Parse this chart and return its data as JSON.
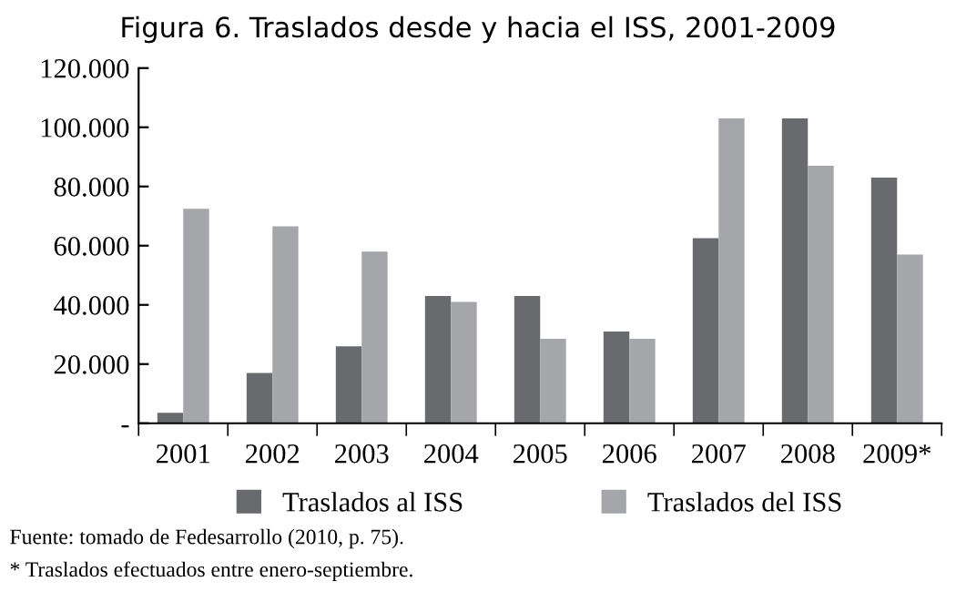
{
  "chart_data": {
    "type": "bar",
    "title": "Figura 6. Traslados desde y hacia el ISS, 2001-2009",
    "categories": [
      "2001",
      "2002",
      "2003",
      "2004",
      "2005",
      "2006",
      "2007",
      "2008",
      "2009*"
    ],
    "series": [
      {
        "name": "Traslados al ISS",
        "color": "#696a6e",
        "values": [
          3500,
          17000,
          26000,
          43000,
          43000,
          31000,
          62500,
          103000,
          83000
        ]
      },
      {
        "name": "Traslados del ISS",
        "color": "#a5a6aa",
        "values": [
          72500,
          66500,
          58000,
          41000,
          28500,
          28500,
          103000,
          87000,
          57000
        ]
      }
    ],
    "ylim": [
      0,
      120000
    ],
    "yticks": [
      {
        "value": 0,
        "label": "-"
      },
      {
        "value": 20000,
        "label": "20.000"
      },
      {
        "value": 40000,
        "label": "40.000"
      },
      {
        "value": 60000,
        "label": "60.000"
      },
      {
        "value": 80000,
        "label": "80.000"
      },
      {
        "value": 100000,
        "label": "100.000"
      },
      {
        "value": 120000,
        "label": "120.000"
      }
    ],
    "grid": false,
    "legend": "bottom",
    "annotations": [
      "Fuente: tomado de Fedesarrollo (2010, p. 75).",
      "* Traslados efectuados entre enero-septiembre."
    ]
  }
}
